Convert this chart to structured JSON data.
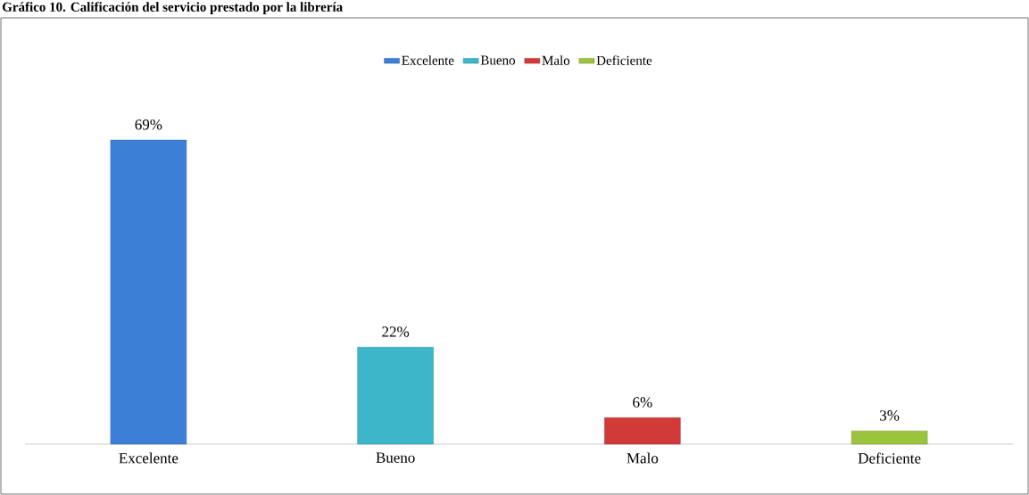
{
  "chart_data": {
    "type": "bar",
    "title": "Gráfico 10. Calificación del servicio prestado por la librería",
    "categories": [
      "Excelente",
      "Bueno",
      "Malo",
      "Deficiente"
    ],
    "series": [
      {
        "name": "Excelente",
        "color": "#3c7fd6",
        "values": [
          69,
          null,
          null,
          null
        ],
        "value_labels": [
          "69%",
          null,
          null,
          null
        ]
      },
      {
        "name": "Bueno",
        "color": "#3cb6c8",
        "values": [
          null,
          22,
          null,
          null
        ],
        "value_labels": [
          null,
          "22%",
          null,
          null
        ]
      },
      {
        "name": "Malo",
        "color": "#d23a3a",
        "values": [
          null,
          null,
          6,
          null
        ],
        "value_labels": [
          null,
          null,
          "6%",
          null
        ]
      },
      {
        "name": "Deficiente",
        "color": "#9bc43c",
        "values": [
          null,
          null,
          null,
          3
        ],
        "value_labels": [
          null,
          null,
          null,
          "3%"
        ]
      }
    ],
    "legend": "top"
  }
}
